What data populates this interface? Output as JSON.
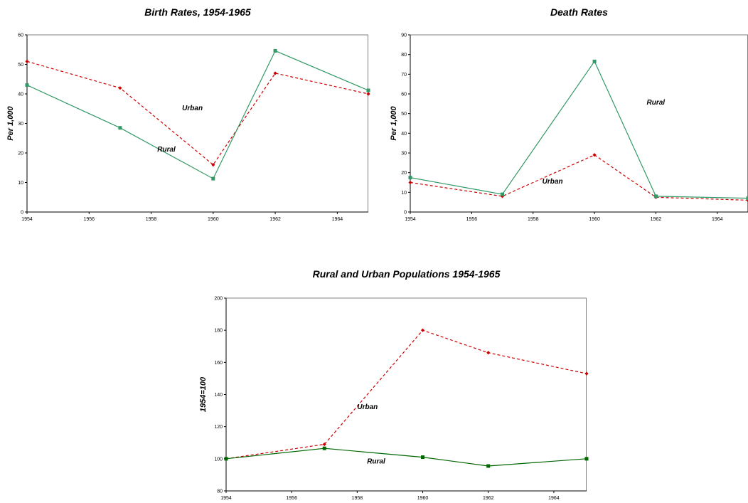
{
  "chart_data": [
    {
      "type": "line",
      "title": "Birth Rates, 1954-1965",
      "ylabel": "Per 1,000",
      "xlim": [
        1954,
        1965
      ],
      "ylim": [
        0,
        60
      ],
      "x_ticks": [
        1954,
        1956,
        1958,
        1960,
        1962,
        1964
      ],
      "y_ticks": [
        0,
        10,
        20,
        30,
        40,
        50,
        60
      ],
      "grid": false,
      "series": [
        {
          "name": "Urban",
          "x": [
            1954,
            1957,
            1960,
            1962,
            1965
          ],
          "y": [
            51,
            42,
            16,
            47,
            40
          ],
          "color": "#cc0000",
          "dashed": true,
          "marker": "diamond"
        },
        {
          "name": "Rural",
          "x": [
            1954,
            1957,
            1960,
            1962,
            1965
          ],
          "y": [
            43,
            28.5,
            11.3,
            54.6,
            41.2
          ],
          "color": "#339966",
          "dashed": false,
          "marker": "square"
        }
      ],
      "annotations": [
        {
          "series": "Urban",
          "x": 1959.0,
          "y": 34.5
        },
        {
          "series": "Rural",
          "x": 1958.2,
          "y": 20.5
        }
      ]
    },
    {
      "type": "line",
      "title": "Death Rates",
      "ylabel": "Per 1,000",
      "xlim": [
        1954,
        1965
      ],
      "ylim": [
        0,
        90
      ],
      "x_ticks": [
        1954,
        1956,
        1958,
        1960,
        1962,
        1964
      ],
      "y_ticks": [
        0,
        10,
        20,
        30,
        40,
        50,
        60,
        70,
        80,
        90
      ],
      "grid": false,
      "series": [
        {
          "name": "Urban",
          "x": [
            1954,
            1957,
            1960,
            1962,
            1965
          ],
          "y": [
            15,
            8,
            29,
            7.5,
            6
          ],
          "color": "#cc0000",
          "dashed": true,
          "marker": "diamond"
        },
        {
          "name": "Rural",
          "x": [
            1954,
            1957,
            1960,
            1962,
            1965
          ],
          "y": [
            17.5,
            9,
            76.5,
            8,
            7
          ],
          "color": "#339966",
          "dashed": false,
          "marker": "square"
        }
      ],
      "annotations": [
        {
          "series": "Urban",
          "x": 1958.3,
          "y": 14.5
        },
        {
          "series": "Rural",
          "x": 1961.7,
          "y": 54.5
        }
      ]
    },
    {
      "type": "line",
      "title": "Rural and Urban Populations 1954-1965",
      "ylabel": "1954=100",
      "xlim": [
        1954,
        1965
      ],
      "ylim": [
        80,
        200
      ],
      "x_ticks": [
        1954,
        1956,
        1958,
        1960,
        1962,
        1964
      ],
      "y_ticks": [
        80,
        100,
        120,
        140,
        160,
        180,
        200
      ],
      "grid": false,
      "series": [
        {
          "name": "Urban",
          "x": [
            1954,
            1957,
            1960,
            1962,
            1965
          ],
          "y": [
            100,
            109,
            180,
            166,
            153
          ],
          "color": "#cc0000",
          "dashed": true,
          "marker": "diamond"
        },
        {
          "name": "Rural",
          "x": [
            1954,
            1957,
            1960,
            1962,
            1965
          ],
          "y": [
            100,
            106.5,
            101,
            95.5,
            100
          ],
          "color": "#006600",
          "dashed": false,
          "marker": "square"
        }
      ],
      "annotations": [
        {
          "series": "Urban",
          "x": 1958.0,
          "y": 131
        },
        {
          "series": "Rural",
          "x": 1958.3,
          "y": 97
        }
      ]
    }
  ]
}
